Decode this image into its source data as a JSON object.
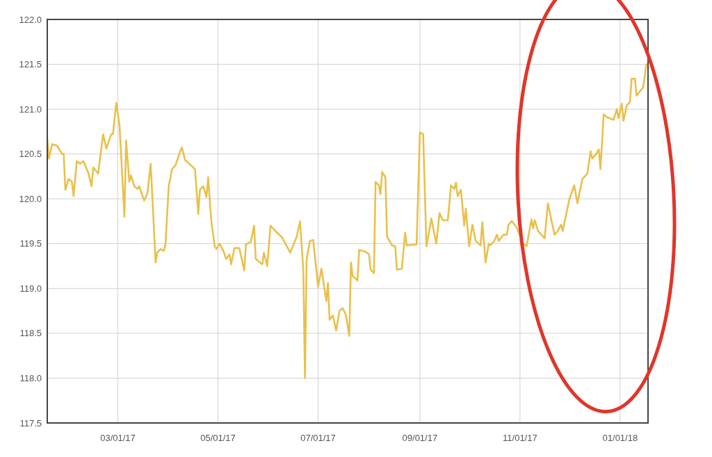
{
  "chart_data": {
    "type": "line",
    "grid": true,
    "xlim": [
      "2017-01-17",
      "2018-01-18"
    ],
    "xticks": [
      {
        "value": "2017-03-01",
        "label": "03/01/17"
      },
      {
        "value": "2017-05-01",
        "label": "05/01/17"
      },
      {
        "value": "2017-07-01",
        "label": "07/01/17"
      },
      {
        "value": "2017-09-01",
        "label": "09/01/17"
      },
      {
        "value": "2017-11-01",
        "label": "11/01/17"
      },
      {
        "value": "2018-01-01",
        "label": "01/01/18"
      }
    ],
    "ylim": [
      117.5,
      122.0
    ],
    "yticks": [
      {
        "value": 117.5,
        "label": "117.5"
      },
      {
        "value": 118,
        "label": "118.0"
      },
      {
        "value": 118.5,
        "label": "118.5"
      },
      {
        "value": 119,
        "label": "119.0"
      },
      {
        "value": 119.5,
        "label": "119.5"
      },
      {
        "value": 120,
        "label": "120.0"
      },
      {
        "value": 120.5,
        "label": "120.5"
      },
      {
        "value": 121,
        "label": "121.0"
      },
      {
        "value": 121.5,
        "label": "121.5"
      },
      {
        "value": 122,
        "label": "122.0"
      }
    ],
    "x": [
      "2017-01-17",
      "2017-01-18",
      "2017-01-20",
      "2017-01-23",
      "2017-01-26",
      "2017-01-27",
      "2017-01-28",
      "2017-01-30",
      "2017-02-01",
      "2017-02-02",
      "2017-02-04",
      "2017-02-06",
      "2017-02-08",
      "2017-02-11",
      "2017-02-13",
      "2017-02-14",
      "2017-02-17",
      "2017-02-20",
      "2017-02-22",
      "2017-02-25",
      "2017-02-26",
      "2017-02-28",
      "2017-03-02",
      "2017-03-05",
      "2017-03-06",
      "2017-03-08",
      "2017-03-09",
      "2017-03-11",
      "2017-03-13",
      "2017-03-14",
      "2017-03-17",
      "2017-03-19",
      "2017-03-21",
      "2017-03-24",
      "2017-03-25",
      "2017-03-27",
      "2017-03-29",
      "2017-03-30",
      "2017-04-01",
      "2017-04-03",
      "2017-04-05",
      "2017-04-08",
      "2017-04-09",
      "2017-04-11",
      "2017-04-13",
      "2017-04-17",
      "2017-04-19",
      "2017-04-20",
      "2017-04-22",
      "2017-04-24",
      "2017-04-25",
      "2017-04-27",
      "2017-04-29",
      "2017-04-30",
      "2017-05-02",
      "2017-05-04",
      "2017-05-06",
      "2017-05-08",
      "2017-05-09",
      "2017-05-11",
      "2017-05-14",
      "2017-05-17",
      "2017-05-18",
      "2017-05-21",
      "2017-05-23",
      "2017-05-24",
      "2017-05-28",
      "2017-05-29",
      "2017-05-31",
      "2017-06-02",
      "2017-06-05",
      "2017-06-09",
      "2017-06-14",
      "2017-06-18",
      "2017-06-20",
      "2017-06-22",
      "2017-06-23",
      "2017-06-24",
      "2017-06-26",
      "2017-06-28",
      "2017-07-01",
      "2017-07-03",
      "2017-07-06",
      "2017-07-07",
      "2017-07-08",
      "2017-07-10",
      "2017-07-12",
      "2017-07-14",
      "2017-07-16",
      "2017-07-18",
      "2017-07-20",
      "2017-07-21",
      "2017-07-22",
      "2017-07-25",
      "2017-07-26",
      "2017-07-30",
      "2017-08-01",
      "2017-08-02",
      "2017-08-04",
      "2017-08-05",
      "2017-08-07",
      "2017-08-08",
      "2017-08-09",
      "2017-08-11",
      "2017-08-12",
      "2017-08-15",
      "2017-08-17",
      "2017-08-18",
      "2017-08-21",
      "2017-08-23",
      "2017-08-24",
      "2017-08-30",
      "2017-09-01",
      "2017-09-03",
      "2017-09-05",
      "2017-09-08",
      "2017-09-11",
      "2017-09-13",
      "2017-09-15",
      "2017-09-18",
      "2017-09-20",
      "2017-09-22",
      "2017-09-23",
      "2017-09-24",
      "2017-09-26",
      "2017-09-28",
      "2017-09-29",
      "2017-10-01",
      "2017-10-03",
      "2017-10-05",
      "2017-10-08",
      "2017-10-09",
      "2017-10-11",
      "2017-10-13",
      "2017-10-14",
      "2017-10-16",
      "2017-10-18",
      "2017-10-19",
      "2017-10-22",
      "2017-10-24",
      "2017-10-25",
      "2017-10-27",
      "2017-10-30",
      "2017-11-03",
      "2017-11-05",
      "2017-11-08",
      "2017-11-09",
      "2017-11-10",
      "2017-11-12",
      "2017-11-16",
      "2017-11-18",
      "2017-11-22",
      "2017-11-24",
      "2017-11-26",
      "2017-11-27",
      "2017-12-01",
      "2017-12-04",
      "2017-12-06",
      "2017-12-09",
      "2017-12-12",
      "2017-12-14",
      "2017-12-15",
      "2017-12-17",
      "2017-12-19",
      "2017-12-20",
      "2017-12-22",
      "2017-12-24",
      "2017-12-28",
      "2017-12-30",
      "2017-12-31",
      "2018-01-02",
      "2018-01-03",
      "2018-01-05",
      "2018-01-07",
      "2018-01-08",
      "2018-01-10",
      "2018-01-11",
      "2018-01-14",
      "2018-01-15",
      "2018-01-17"
    ],
    "series": [
      {
        "color": "#e9c04b",
        "values": [
          120.67,
          120.45,
          120.61,
          120.59,
          120.5,
          120.5,
          120.1,
          120.22,
          120.19,
          120.03,
          120.42,
          120.39,
          120.42,
          120.29,
          120.14,
          120.35,
          120.28,
          120.72,
          120.56,
          120.72,
          120.72,
          121.07,
          120.82,
          119.8,
          120.65,
          120.19,
          120.26,
          120.14,
          120.11,
          120.14,
          119.98,
          120.06,
          120.39,
          119.29,
          119.4,
          119.44,
          119.42,
          119.49,
          120.14,
          120.33,
          120.37,
          120.53,
          120.57,
          120.43,
          120.4,
          120.33,
          119.83,
          120.1,
          120.14,
          120.02,
          120.24,
          119.74,
          119.47,
          119.44,
          119.5,
          119.43,
          119.33,
          119.38,
          119.27,
          119.45,
          119.45,
          119.2,
          119.49,
          119.52,
          119.7,
          119.33,
          119.27,
          119.4,
          119.25,
          119.7,
          119.64,
          119.57,
          119.4,
          119.58,
          119.75,
          119.2,
          118.0,
          119.33,
          119.53,
          119.54,
          119.02,
          119.22,
          118.86,
          119.06,
          118.65,
          118.7,
          118.53,
          118.75,
          118.78,
          118.7,
          118.47,
          119.29,
          119.14,
          119.09,
          119.43,
          119.41,
          119.38,
          119.21,
          119.17,
          120.19,
          120.15,
          120.05,
          120.3,
          120.24,
          119.58,
          119.48,
          119.47,
          119.21,
          119.22,
          119.62,
          119.48,
          119.49,
          120.74,
          120.72,
          119.47,
          119.78,
          119.5,
          119.84,
          119.76,
          119.76,
          120.15,
          120.11,
          120.18,
          120.03,
          120.1,
          119.7,
          119.89,
          119.47,
          119.71,
          119.53,
          119.48,
          119.74,
          119.29,
          119.5,
          119.48,
          119.52,
          119.6,
          119.53,
          119.6,
          119.6,
          119.71,
          119.75,
          119.68,
          119.5,
          119.47,
          119.77,
          119.67,
          119.76,
          119.64,
          119.56,
          119.95,
          119.6,
          119.64,
          119.71,
          119.64,
          119.99,
          120.15,
          119.95,
          120.22,
          120.28,
          120.53,
          120.45,
          120.49,
          120.55,
          120.33,
          120.94,
          120.91,
          120.88,
          121.0,
          120.9,
          121.06,
          120.87,
          121.04,
          121.08,
          121.34,
          121.34,
          121.15,
          121.22,
          121.24,
          121.5
        ]
      }
    ]
  }
}
